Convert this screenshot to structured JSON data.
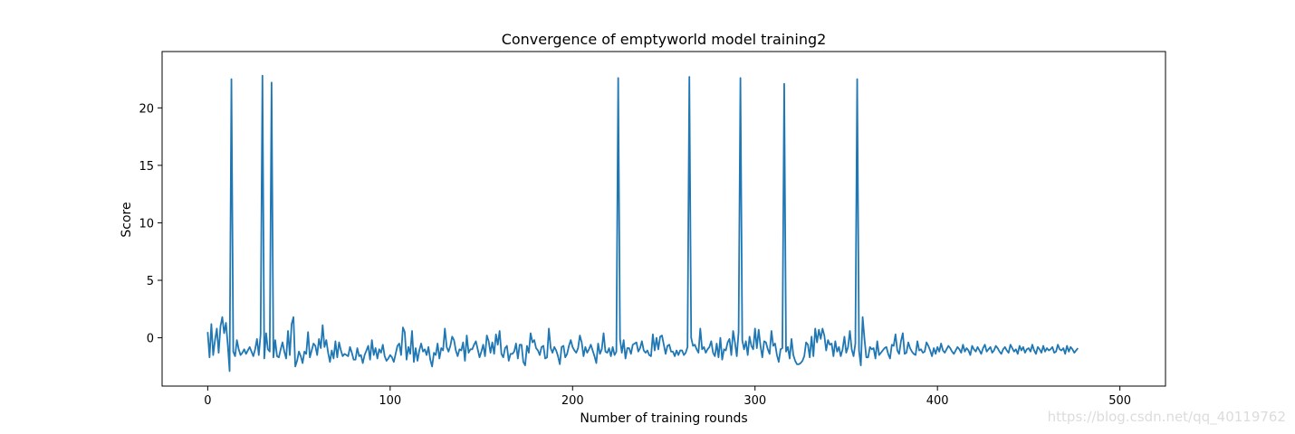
{
  "watermark": "https://blog.csdn.net/qq_40119762",
  "chart_data": {
    "type": "line",
    "title": "Convergence of emptyworld model training2",
    "xlabel": "Number of training rounds",
    "ylabel": "Score",
    "xlim": [
      -25,
      525
    ],
    "ylim": [
      -4.2,
      24.9
    ],
    "xticks": [
      0,
      100,
      200,
      300,
      400,
      500
    ],
    "yticks": [
      0,
      5,
      10,
      15,
      20
    ],
    "grid": false,
    "line_color": "#1f77b4",
    "series": [
      {
        "values": [
          0.5,
          -1.7,
          1.2,
          -1.5,
          -0.2,
          0.8,
          -1.3,
          1.0,
          1.8,
          0.4,
          1.3,
          -0.6,
          -2.9,
          22.5,
          -1.2,
          -1.6,
          -0.2,
          -1.0,
          -1.5,
          -1.3,
          -1.0,
          -1.4,
          -1.1,
          -0.8,
          -1.2,
          -1.6,
          -1.0,
          -0.1,
          -1.5,
          0.3,
          22.8,
          -1.8,
          0.4,
          -1.0,
          -1.2,
          22.2,
          -1.7,
          -0.2,
          -1.6,
          -1.7,
          -1.0,
          -0.4,
          -1.2,
          -1.8,
          0.6,
          -1.5,
          1.2,
          1.8,
          -2.5,
          -2.0,
          -1.2,
          -1.6,
          -2.2,
          -1.2,
          -1.4,
          0.5,
          -1.7,
          -1.1,
          -0.5,
          -0.7,
          -1.5,
          -0.1,
          -0.9,
          1.1,
          -0.8,
          -0.2,
          -1.3,
          -2.1,
          -1.1,
          -1.8,
          -0.3,
          -1.7,
          -0.4,
          -1.1,
          -1.6,
          -1.4,
          -1.5,
          -1.6,
          -0.8,
          -1.3,
          -1.9,
          -1.9,
          -0.9,
          -1.6,
          -1.5,
          -2.2,
          -1.5,
          -1.1,
          -0.7,
          -1.9,
          -0.2,
          -1.5,
          -0.9,
          -1.8,
          -1.0,
          -1.3,
          -0.6,
          -1.6,
          -2.0,
          -1.8,
          -1.5,
          -1.7,
          -2.1,
          -1.4,
          -0.7,
          -0.5,
          -1.5,
          0.9,
          0.5,
          -1.9,
          -0.8,
          -1.4,
          0.6,
          -2.1,
          -0.9,
          -2.0,
          -1.1,
          -0.5,
          -1.2,
          -1.0,
          -1.5,
          -0.8,
          -1.9,
          -2.5,
          -1.3,
          -1.5,
          -0.5,
          -1.8,
          -0.9,
          -1.1,
          0.8,
          -0.8,
          -1.2,
          -0.7,
          0.1,
          -0.2,
          -1.1,
          -1.6,
          -1.0,
          -1.1,
          -0.4,
          -2.0,
          0.2,
          -1.3,
          -1.0,
          -1.0,
          -0.6,
          -0.3,
          -1.0,
          -1.7,
          -1.2,
          -0.6,
          -1.6,
          0.2,
          -0.3,
          -1.3,
          -0.4,
          -1.4,
          0.3,
          -0.6,
          0.6,
          -1.4,
          -1.7,
          -0.9,
          -0.7,
          -2.0,
          -1.4,
          -1.4,
          -1.2,
          -0.5,
          -1.8,
          -0.6,
          -0.6,
          -2.1,
          -2.4,
          -0.7,
          -1.3,
          0.4,
          -0.4,
          -0.2,
          -0.9,
          -1.1,
          -1.5,
          -0.8,
          -0.7,
          -1.8,
          -1.7,
          0.8,
          -0.9,
          -1.3,
          -0.8,
          -1.1,
          -1.6,
          -2.3,
          -0.8,
          -0.7,
          -1.7,
          -1.4,
          -0.7,
          -0.2,
          -0.8,
          -1.1,
          -1.3,
          -0.9,
          0.2,
          -0.4,
          -1.6,
          -0.8,
          -1.3,
          -1.0,
          -0.6,
          -1.1,
          -1.6,
          -2.2,
          -0.5,
          -1.4,
          -1.0,
          0.4,
          -1.2,
          -1.3,
          -0.9,
          -1.6,
          -0.8,
          -1.5,
          -1.2,
          22.6,
          -0.1,
          -1.3,
          -0.2,
          -1.8,
          -0.9,
          -0.9,
          -1.4,
          -0.6,
          -0.5,
          -0.4,
          -1.2,
          -0.9,
          -0.3,
          -1.1,
          -1.3,
          -1.1,
          -1.5,
          -1.6,
          0.3,
          -1.1,
          0.0,
          -1.0,
          0.1,
          0.2,
          -0.6,
          -1.4,
          -0.7,
          -0.6,
          -1.2,
          -1.2,
          -1.6,
          -1.1,
          -1.5,
          -1.1,
          -1.1,
          -1.5,
          -1.3,
          -0.8,
          22.7,
          0.0,
          -0.7,
          -0.6,
          -1.0,
          -1.3,
          0.8,
          -1.0,
          -0.8,
          -1.3,
          -1.0,
          -0.8,
          -0.3,
          -1.3,
          -1.6,
          -0.5,
          -1.7,
          0.0,
          -1.9,
          -1.0,
          -1.1,
          -0.4,
          -0.1,
          -1.5,
          0.6,
          -0.4,
          -1.6,
          0.5,
          22.6,
          -0.2,
          -1.0,
          -0.3,
          -1.5,
          0.1,
          -0.7,
          -1.0,
          0.8,
          -0.9,
          0.7,
          -0.7,
          -1.7,
          -0.3,
          -0.4,
          -1.0,
          -1.4,
          0.6,
          -0.7,
          -0.5,
          -1.5,
          -2.1,
          -1.0,
          -0.9,
          22.1,
          -1.2,
          -0.8,
          -1.8,
          -0.1,
          -1.5,
          -2.0,
          -2.3,
          -2.3,
          -2.2,
          -2.0,
          -1.6,
          -0.4,
          -0.6,
          -1.7,
          0.1,
          -1.6,
          0.8,
          -0.4,
          0.7,
          -0.1,
          0.8,
          0.2,
          -1.1,
          -0.2,
          -0.6,
          -0.5,
          -1.6,
          -0.3,
          -1.2,
          -0.8,
          -1.6,
          -1.0,
          0.1,
          -1.3,
          -0.8,
          0.6,
          -1.0,
          -1.6,
          -0.5,
          22.5,
          -1.1,
          -2.4,
          1.8,
          -0.1,
          -1.7,
          -1.7,
          -0.8,
          -1.0,
          -0.9,
          -1.8,
          -0.3,
          -1.5,
          -1.3,
          -1.1,
          -0.9,
          -0.8,
          -1.4,
          -1.8,
          -0.6,
          -0.7,
          0.3,
          -1.1,
          -1.4,
          -0.3,
          0.4,
          -1.4,
          -1.3,
          -0.4,
          -0.9,
          -1.2,
          -1.4,
          -1.5,
          -0.3,
          -1.1,
          -1.0,
          -1.3,
          -1.2,
          -0.4,
          -0.7,
          -1.1,
          -1.6,
          -0.9,
          -1.4,
          -0.8,
          -1.2,
          -0.5,
          -1.1,
          -1.3,
          -1.0,
          -0.7,
          -0.9,
          -1.2,
          -1.4,
          -1.1,
          -0.8,
          -1.0,
          -1.3,
          -0.6,
          -1.2,
          -0.9,
          -1.1,
          -1.5,
          -0.7,
          -1.0,
          -1.2,
          -0.8,
          -1.1,
          -1.4,
          -0.9,
          -0.6,
          -1.2,
          -1.0,
          -0.8,
          -1.3,
          -1.1,
          -0.7,
          -0.9,
          -1.2,
          -1.4,
          -1.0,
          -0.8,
          -1.1,
          -1.3,
          -0.6,
          -0.9,
          -1.2,
          -1.0,
          -1.4,
          -0.7,
          -1.1,
          -0.8,
          -1.3,
          -1.0,
          -0.9,
          -1.2,
          -0.6,
          -1.1,
          -1.4,
          -0.8,
          -1.0,
          -1.3,
          -0.7,
          -1.2,
          -0.9,
          -1.1,
          -1.0,
          -0.8,
          -1.3,
          -1.2,
          -0.6,
          -1.0,
          -1.1,
          -0.9,
          -1.4,
          -0.7,
          -1.2,
          -0.8,
          -1.0,
          -1.3,
          -1.1,
          -0.9
        ]
      }
    ]
  }
}
